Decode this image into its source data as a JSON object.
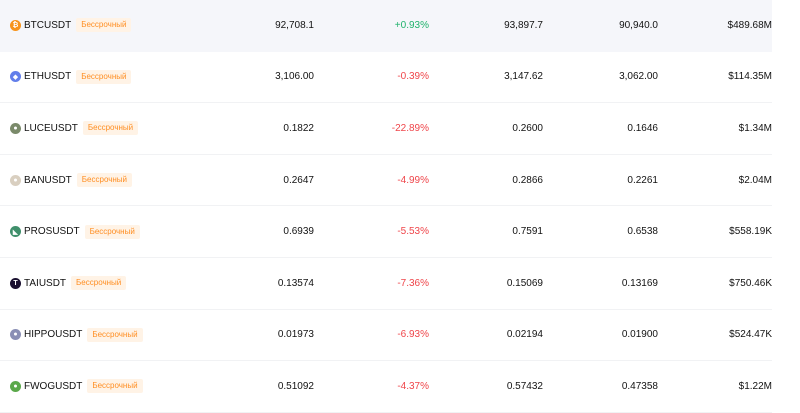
{
  "colors": {
    "positive": "#20b26c",
    "negative": "#ef454a",
    "badge_text": "#ff8f24",
    "badge_bg": "#fff3e6",
    "hover_row": "#f5f6fa"
  },
  "rows": [
    {
      "symbol": "BTCUSDT",
      "badge": "Бессрочный",
      "price": "92,708.1",
      "change": "+0.93%",
      "direction": "up",
      "high": "93,897.7",
      "low": "90,940.0",
      "volume": "$489.68M",
      "icon": "bitcoin-icon",
      "icon_color": "#f7931a",
      "icon_glyph": "₿"
    },
    {
      "symbol": "ETHUSDT",
      "badge": "Бессрочный",
      "price": "3,106.00",
      "change": "-0.39%",
      "direction": "down",
      "high": "3,147.62",
      "low": "3,062.00",
      "volume": "$114.35M",
      "icon": "ethereum-icon",
      "icon_color": "#627eea",
      "icon_glyph": "◆"
    },
    {
      "symbol": "LUCEUSDT",
      "badge": "Бессрочный",
      "price": "0.1822",
      "change": "-22.89%",
      "direction": "down",
      "high": "0.2600",
      "low": "0.1646",
      "volume": "$1.34M",
      "icon": "luce-icon",
      "icon_color": "#7a8a6a",
      "icon_glyph": "●"
    },
    {
      "symbol": "BANUSDT",
      "badge": "Бессрочный",
      "price": "0.2647",
      "change": "-4.99%",
      "direction": "down",
      "high": "0.2866",
      "low": "0.2261",
      "volume": "$2.04M",
      "icon": "ban-icon",
      "icon_color": "#d9cfc0",
      "icon_glyph": "●"
    },
    {
      "symbol": "PROSUSDT",
      "badge": "Бессрочный",
      "price": "0.6939",
      "change": "-5.53%",
      "direction": "down",
      "high": "0.7591",
      "low": "0.6538",
      "volume": "$558.19K",
      "icon": "pros-icon",
      "icon_color": "#3f8f6b",
      "icon_glyph": "◣"
    },
    {
      "symbol": "TAIUSDT",
      "badge": "Бессрочный",
      "price": "0.13574",
      "change": "-7.36%",
      "direction": "down",
      "high": "0.15069",
      "low": "0.13169",
      "volume": "$750.46K",
      "icon": "tai-icon",
      "icon_color": "#1a1030",
      "icon_glyph": "T"
    },
    {
      "symbol": "HIPPOUSDT",
      "badge": "Бессрочный",
      "price": "0.01973",
      "change": "-6.93%",
      "direction": "down",
      "high": "0.02194",
      "low": "0.01900",
      "volume": "$524.47K",
      "icon": "hippo-icon",
      "icon_color": "#8a8fb5",
      "icon_glyph": "●"
    },
    {
      "symbol": "FWOGUSDT",
      "badge": "Бессрочный",
      "price": "0.51092",
      "change": "-4.37%",
      "direction": "down",
      "high": "0.57432",
      "low": "0.47358",
      "volume": "$1.22M",
      "icon": "fwog-icon",
      "icon_color": "#5aa84a",
      "icon_glyph": "●"
    }
  ]
}
